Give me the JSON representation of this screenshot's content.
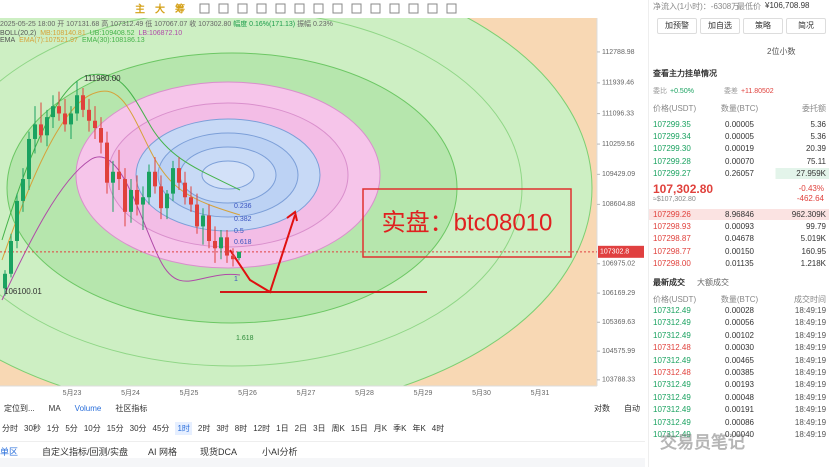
{
  "toolbar": {
    "items": [
      "主",
      "大",
      "筹"
    ]
  },
  "chart_data": {
    "type": "candlestick",
    "info": {
      "date": "2025-05-25 18:00",
      "open": "开 107131.68",
      "high": "高 107312.49",
      "low": "低 107067.07",
      "close": "收 107302.80",
      "change": "幅度 0.16%(171.13)",
      "amplitude": "振幅 0.23%"
    },
    "indicators": [
      [
        "BOLL(20,2)",
        "MB:108140.81",
        "UB:109408.52",
        "LB:106872.10"
      ],
      [
        "EMA",
        "EMA(7):107521.97",
        "EMA(30):108186.13"
      ]
    ],
    "ylim": [
      103620,
      113720
    ],
    "yticks": [
      112788.98,
      111939.46,
      111096.33,
      110259.56,
      109429.09,
      108604.88,
      106975.02,
      106169.29,
      105369.63,
      104575.99,
      103788.33
    ],
    "last_price": 107302.8,
    "x_labels": [
      "5月23",
      "5月24",
      "5月25",
      "5月26",
      "5月27",
      "5月28",
      "5月29",
      "5月30",
      "5月31"
    ],
    "candles": [
      [
        106300,
        106800,
        106100,
        106700
      ],
      [
        106700,
        107800,
        106600,
        107600
      ],
      [
        107600,
        108900,
        107400,
        108700
      ],
      [
        108700,
        109600,
        108400,
        109300
      ],
      [
        109300,
        110600,
        109000,
        110400
      ],
      [
        110400,
        111300,
        110000,
        110800
      ],
      [
        110800,
        111400,
        110300,
        110500
      ],
      [
        110500,
        111200,
        110200,
        111000
      ],
      [
        111000,
        111600,
        110700,
        111300
      ],
      [
        111300,
        111700,
        110900,
        111100
      ],
      [
        111100,
        111500,
        110600,
        110800
      ],
      [
        110800,
        111300,
        110400,
        111100
      ],
      [
        111100,
        111980,
        110900,
        111600
      ],
      [
        111600,
        111800,
        111000,
        111200
      ],
      [
        111200,
        111500,
        110600,
        110900
      ],
      [
        110900,
        111300,
        110400,
        110700
      ],
      [
        110700,
        111000,
        110000,
        110300
      ],
      [
        110300,
        110600,
        108900,
        109200
      ],
      [
        109200,
        109800,
        108400,
        109500
      ],
      [
        109500,
        110100,
        109000,
        109300
      ],
      [
        109300,
        109600,
        108000,
        108400
      ],
      [
        108400,
        109300,
        108100,
        109000
      ],
      [
        109000,
        109400,
        108300,
        108600
      ],
      [
        108600,
        109100,
        107900,
        108800
      ],
      [
        108800,
        109700,
        108600,
        109500
      ],
      [
        109500,
        109900,
        108900,
        109100
      ],
      [
        109100,
        109400,
        108200,
        108500
      ],
      [
        108500,
        109000,
        108200,
        108900
      ],
      [
        108900,
        109800,
        108700,
        109600
      ],
      [
        109600,
        109900,
        109000,
        109200
      ],
      [
        109200,
        109500,
        108600,
        108800
      ],
      [
        108800,
        109100,
        108400,
        108600
      ],
      [
        108600,
        108900,
        107800,
        108000
      ],
      [
        108000,
        108500,
        107500,
        108300
      ],
      [
        108300,
        108600,
        107400,
        107600
      ],
      [
        107600,
        108000,
        107000,
        107400
      ],
      [
        107400,
        107900,
        107100,
        107700
      ],
      [
        107700,
        107900,
        107000,
        107200
      ],
      [
        107200,
        107400,
        106900,
        107100
      ],
      [
        107131.68,
        107312.49,
        107067.07,
        107302.8
      ]
    ],
    "annotations": {
      "high": "111980.00",
      "low": "106100.01",
      "fib": [
        "0.236",
        "0.382",
        "0.5",
        "0.618",
        "1",
        "1.618"
      ],
      "note": "实盘：btc08010"
    }
  },
  "chart_bar": {
    "left": [
      "定位到...",
      "MA",
      "Volume",
      "社区指标"
    ],
    "right": [
      "对数",
      "自动"
    ]
  },
  "timeframes": [
    "分时",
    "30秒",
    "1分",
    "5分",
    "10分",
    "15分",
    "30分",
    "45分",
    "1时",
    "2时",
    "3时",
    "8时",
    "12时",
    "1日",
    "2日",
    "3日",
    "周K",
    "15日",
    "月K",
    "季K",
    "年K",
    "4时"
  ],
  "tabs": [
    "单区",
    "自定义指标/回测/实盘",
    "AI 网格",
    "现货DCA",
    "小AI分析"
  ],
  "side": {
    "net_flow": "净流入(1小时)：-6308万",
    "lowest": "最低价",
    "lowest_value": "¥106,708.98",
    "buttons": [
      "加预警",
      "加自选",
      "策略",
      "简况"
    ],
    "decimals": "2位小数",
    "main_orders": "查看主力挂单情况",
    "ratio": [
      "委比",
      "+0.50%",
      "委差",
      "+11.80502"
    ],
    "book_header": [
      "价格(USDT)",
      "数量(BTC)",
      "委托额"
    ],
    "asks": [
      [
        "107299.35",
        "0.00005",
        "5.36"
      ],
      [
        "107299.34",
        "0.00005",
        "5.36"
      ],
      [
        "107299.30",
        "0.00019",
        "20.39"
      ],
      [
        "107299.28",
        "0.00070",
        "75.11"
      ],
      [
        "107299.27",
        "0.26057",
        "27.959K"
      ]
    ],
    "price": "107,302.80",
    "price_usd": "≈$107,302.80",
    "change_pct": "-0.43%",
    "change_abs": "-462.64",
    "bids": [
      [
        "107299.26",
        "8.96846",
        "962.309K"
      ],
      [
        "107298.93",
        "0.00093",
        "99.79"
      ],
      [
        "107298.87",
        "0.04678",
        "5.019K"
      ],
      [
        "107298.77",
        "0.00150",
        "160.95"
      ],
      [
        "107298.00",
        "0.01135",
        "1.218K"
      ]
    ],
    "trade_tabs": [
      "最新成交",
      "大额成交"
    ],
    "trade_header": [
      "价格(USDT)",
      "数量(BTC)",
      "成交时间"
    ],
    "trades": [
      [
        "107312.49",
        "0.00028",
        "18:49:19"
      ],
      [
        "107312.49",
        "0.00056",
        "18:49:19"
      ],
      [
        "107312.49",
        "0.00102",
        "18:49:19"
      ],
      [
        "107312.48",
        "0.00030",
        "18:49:19"
      ],
      [
        "107312.49",
        "0.00465",
        "18:49:19"
      ],
      [
        "107312.48",
        "0.00385",
        "18:49:19"
      ],
      [
        "107312.49",
        "0.00193",
        "18:49:19"
      ],
      [
        "107312.49",
        "0.00048",
        "18:49:19"
      ],
      [
        "107312.49",
        "0.00191",
        "18:49:19"
      ],
      [
        "107312.49",
        "0.00086",
        "18:49:19"
      ],
      [
        "107312.49",
        "0.00040",
        "18:49:19"
      ]
    ],
    "watermark": "交易员笔记"
  }
}
